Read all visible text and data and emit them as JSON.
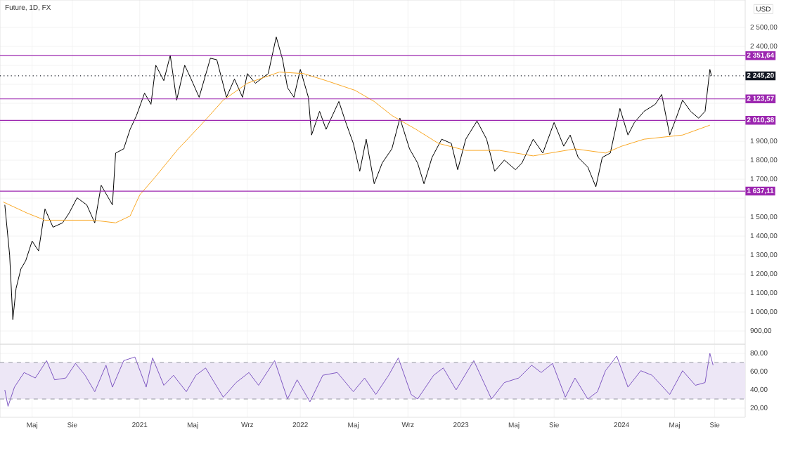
{
  "chart_data": [
    {
      "type": "line",
      "title": "Future, 1D, FX",
      "annotations": [
        "USD"
      ],
      "xlim": [
        2020.13,
        2024.77
      ],
      "ylim": [
        830,
        2645
      ],
      "tick_labels": "y",
      "grid": true,
      "marker": "none",
      "xticks": [
        2020.33,
        2020.58,
        2021,
        2021.33,
        2021.67,
        2022,
        2022.33,
        2022.67,
        2023,
        2023.33,
        2023.58,
        2024,
        2024.33,
        2024.58
      ],
      "yticks": [
        {
          "value": 900,
          "label": "900,00"
        },
        {
          "value": 1000,
          "label": "1 000,00"
        },
        {
          "value": 1100,
          "label": "1 100,00"
        },
        {
          "value": 1200,
          "label": "1 200,00"
        },
        {
          "value": 1300,
          "label": "1 300,00"
        },
        {
          "value": 1400,
          "label": "1 400,00"
        },
        {
          "value": 1500,
          "label": "1 500,00"
        },
        {
          "value": 1600,
          "label": null
        },
        {
          "value": 1700,
          "label": "1 700,00"
        },
        {
          "value": 1800,
          "label": "1 800,00"
        },
        {
          "value": 1900,
          "label": "1 900,00"
        },
        {
          "value": 2000,
          "label": null
        },
        {
          "value": 2100,
          "label": null
        },
        {
          "value": 2200,
          "label": null
        },
        {
          "value": 2300,
          "label": null
        },
        {
          "value": 2400,
          "label": "2 400,00"
        },
        {
          "value": 2500,
          "label": "2 500,00"
        }
      ],
      "ref_lines": [
        {
          "axis": "y",
          "value": 2351.64,
          "label": "2 351,64",
          "color": "#9c27b0",
          "line_style": "solid"
        },
        {
          "axis": "y",
          "value": 2245.2,
          "label": "2 245,20",
          "color": "#131722",
          "line_style": "dotted"
        },
        {
          "axis": "y",
          "value": 2123.57,
          "label": "2 123,57",
          "color": "#9c27b0",
          "line_style": "solid"
        },
        {
          "axis": "y",
          "value": 2010.38,
          "label": "2 010,38",
          "color": "#9c27b0",
          "line_style": "solid"
        },
        {
          "axis": "y",
          "value": 1637.11,
          "label": "1 637,11",
          "color": "#9c27b0",
          "line_style": "solid"
        }
      ],
      "series": [
        {
          "color": "#000000",
          "line_style": "solid",
          "x": [
            2020.16,
            2020.19,
            2020.21,
            2020.23,
            2020.26,
            2020.29,
            2020.33,
            2020.37,
            2020.41,
            2020.46,
            2020.52,
            2020.56,
            2020.61,
            2020.67,
            2020.72,
            2020.76,
            2020.83,
            2020.85,
            2020.9,
            2020.94,
            2020.98,
            2021.03,
            2021.07,
            2021.1,
            2021.15,
            2021.19,
            2021.23,
            2021.28,
            2021.32,
            2021.37,
            2021.44,
            2021.48,
            2021.54,
            2021.59,
            2021.64,
            2021.67,
            2021.72,
            2021.8,
            2021.85,
            2021.89,
            2021.92,
            2021.96,
            2022.0,
            2022.05,
            2022.07,
            2022.12,
            2022.16,
            2022.24,
            2022.28,
            2022.33,
            2022.37,
            2022.41,
            2022.46,
            2022.51,
            2022.57,
            2022.62,
            2022.68,
            2022.73,
            2022.77,
            2022.82,
            2022.88,
            2022.94,
            2022.98,
            2023.03,
            2023.1,
            2023.16,
            2023.21,
            2023.27,
            2023.34,
            2023.38,
            2023.45,
            2023.51,
            2023.58,
            2023.64,
            2023.68,
            2023.73,
            2023.79,
            2023.84,
            2023.88,
            2023.93,
            2023.99,
            2024.04,
            2024.08,
            2024.14,
            2024.21,
            2024.25,
            2024.3,
            2024.34,
            2024.38,
            2024.43,
            2024.48,
            2024.52,
            2024.55,
            2024.56
          ],
          "values": [
            1565,
            1300,
            960,
            1124,
            1227,
            1270,
            1374,
            1322,
            1543,
            1447,
            1470,
            1521,
            1602,
            1565,
            1470,
            1668,
            1565,
            1838,
            1860,
            1963,
            2036,
            2154,
            2095,
            2301,
            2220,
            2353,
            2117,
            2301,
            2228,
            2132,
            2338,
            2330,
            2132,
            2228,
            2132,
            2257,
            2206,
            2257,
            2450,
            2330,
            2183,
            2132,
            2279,
            2132,
            1933,
            2058,
            1963,
            2110,
            2007,
            1889,
            1742,
            1911,
            1676,
            1786,
            1860,
            2022,
            1860,
            1786,
            1676,
            1815,
            1911,
            1889,
            1750,
            1911,
            2007,
            1911,
            1742,
            1801,
            1750,
            1786,
            1911,
            1838,
            1999,
            1874,
            1933,
            1815,
            1764,
            1660,
            1815,
            1838,
            2073,
            1933,
            1999,
            2058,
            2095,
            2147,
            1933,
            2022,
            2117,
            2058,
            2022,
            2058,
            2279,
            2245
          ]
        },
        {
          "color": "#f9a825",
          "line_style": "solid",
          "x": [
            2020.15,
            2020.3,
            2020.41,
            2020.56,
            2020.71,
            2020.85,
            2020.94,
            2021.0,
            2021.09,
            2021.24,
            2021.38,
            2021.52,
            2021.67,
            2021.87,
            2022.02,
            2022.16,
            2022.34,
            2022.46,
            2022.57,
            2022.72,
            2022.86,
            2023.03,
            2023.24,
            2023.45,
            2023.71,
            2023.9,
            2024.0,
            2024.14,
            2024.38,
            2024.55
          ],
          "values": [
            1580,
            1521,
            1484,
            1484,
            1484,
            1470,
            1506,
            1617,
            1705,
            1860,
            1985,
            2117,
            2206,
            2265,
            2257,
            2220,
            2169,
            2110,
            2036,
            1963,
            1889,
            1852,
            1852,
            1823,
            1860,
            1838,
            1874,
            1911,
            1933,
            1985
          ]
        }
      ]
    },
    {
      "type": "line",
      "xlim": [
        2020.13,
        2024.77
      ],
      "ylim": [
        10,
        90
      ],
      "grid": true,
      "marker": "none",
      "xticks": [
        {
          "value": 2020.33,
          "label": "Maj"
        },
        {
          "value": 2020.58,
          "label": "Sie"
        },
        {
          "value": 2021,
          "label": "2021"
        },
        {
          "value": 2021.33,
          "label": "Maj"
        },
        {
          "value": 2021.67,
          "label": "Wrz"
        },
        {
          "value": 2022,
          "label": "2022"
        },
        {
          "value": 2022.33,
          "label": "Maj"
        },
        {
          "value": 2022.67,
          "label": "Wrz"
        },
        {
          "value": 2023,
          "label": "2023"
        },
        {
          "value": 2023.33,
          "label": "Maj"
        },
        {
          "value": 2023.58,
          "label": "Sie"
        },
        {
          "value": 2024,
          "label": "2024"
        },
        {
          "value": 2024.33,
          "label": "Maj"
        },
        {
          "value": 2024.58,
          "label": "Sie"
        }
      ],
      "yticks": [
        {
          "value": 20,
          "label": "20,00"
        },
        {
          "value": 40,
          "label": "40,00"
        },
        {
          "value": 60,
          "label": "60,00"
        },
        {
          "value": 80,
          "label": "80,00"
        }
      ],
      "bands": [
        {
          "axis": "y",
          "from": 30,
          "to": 70,
          "color": "#ede7f6"
        }
      ],
      "ref_lines": [
        {
          "axis": "y",
          "value": 70,
          "color": "#9598a1",
          "line_style": "dashed"
        },
        {
          "axis": "y",
          "value": 30,
          "color": "#9598a1",
          "line_style": "dashed"
        }
      ],
      "series": [
        {
          "color": "#7e57c2",
          "line_style": "solid",
          "x": [
            2020.16,
            2020.18,
            2020.22,
            2020.28,
            2020.35,
            2020.42,
            2020.47,
            2020.54,
            2020.6,
            2020.66,
            2020.72,
            2020.79,
            2020.83,
            2020.9,
            2020.97,
            2021.04,
            2021.08,
            2021.15,
            2021.21,
            2021.29,
            2021.35,
            2021.41,
            2021.52,
            2021.6,
            2021.68,
            2021.74,
            2021.84,
            2021.92,
            2021.98,
            2022.06,
            2022.14,
            2022.23,
            2022.33,
            2022.4,
            2022.47,
            2022.55,
            2022.61,
            2022.69,
            2022.73,
            2022.83,
            2022.89,
            2022.97,
            2023.08,
            2023.19,
            2023.27,
            2023.36,
            2023.44,
            2023.5,
            2023.57,
            2023.65,
            2023.71,
            2023.79,
            2023.85,
            2023.9,
            2023.97,
            2024.04,
            2024.12,
            2024.19,
            2024.3,
            2024.38,
            2024.46,
            2024.52,
            2024.55,
            2024.57
          ],
          "values": [
            40,
            22,
            43,
            59,
            53,
            72,
            51,
            53,
            69,
            56,
            38,
            67,
            43,
            72,
            76,
            43,
            75,
            45,
            56,
            38,
            56,
            64,
            32,
            48,
            59,
            45,
            72,
            30,
            51,
            27,
            56,
            59,
            38,
            53,
            35,
            56,
            75,
            35,
            30,
            56,
            64,
            40,
            72,
            30,
            48,
            53,
            67,
            59,
            69,
            32,
            53,
            30,
            38,
            61,
            77,
            43,
            61,
            56,
            35,
            61,
            45,
            48,
            80,
            67
          ]
        }
      ]
    }
  ]
}
